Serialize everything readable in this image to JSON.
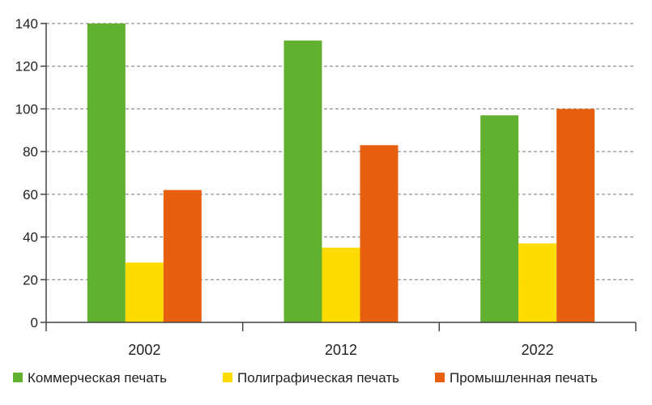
{
  "chart_data": {
    "type": "bar",
    "categories": [
      "2002",
      "2012",
      "2022"
    ],
    "series": [
      {
        "name": "Коммерческая печать",
        "color": "#62B030",
        "values": [
          140,
          132,
          97
        ]
      },
      {
        "name": "Полиграфическая печать",
        "color": "#FFDC00",
        "values": [
          28,
          35,
          37
        ]
      },
      {
        "name": "Промышленная печать",
        "color": "#E8600F",
        "values": [
          62,
          83,
          100
        ]
      }
    ],
    "title": "",
    "xlabel": "",
    "ylabel": "",
    "ylim": [
      0,
      140
    ],
    "yticks": [
      "0",
      "20",
      "40",
      "60",
      "80",
      "100",
      "120",
      "140"
    ],
    "grid": "horizontal-dashed",
    "legend": "bottom"
  }
}
